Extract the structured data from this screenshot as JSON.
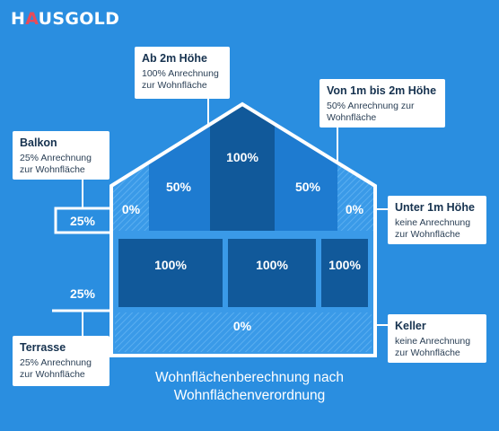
{
  "brand": {
    "logo_pre": "H",
    "logo_mark": "A",
    "logo_post": "USGOLD"
  },
  "colors": {
    "background": "#2a8ee0",
    "house_outline": "#ffffff",
    "full_area": "#11599a",
    "partial_area": "#1e7bd0",
    "excluded_area": "#3a9ae8",
    "accent": "#e84b5a"
  },
  "callouts": {
    "ab_2m": {
      "title": "Ab 2m Höhe",
      "desc": "100% Anrechnung zur Wohnfläche"
    },
    "von_1m_bis_2m": {
      "title": "Von 1m bis 2m Höhe",
      "desc": "50% Anrechnung zur Wohnfläche"
    },
    "balkon": {
      "title": "Balkon",
      "desc": "25% Anrechnung zur Wohnfläche"
    },
    "unter_1m": {
      "title": "Unter 1m Höhe",
      "desc": "keine Anrechnung zur Wohnfläche"
    },
    "terrasse": {
      "title": "Terrasse",
      "desc": "25% Anrechnung zur Wohnfläche"
    },
    "keller": {
      "title": "Keller",
      "desc": "keine Anrechnung zur Wohnfläche"
    }
  },
  "zones": {
    "attic_left_outer": "0%",
    "attic_left": "50%",
    "attic_center": "100%",
    "attic_right": "50%",
    "attic_right_outer": "0%",
    "floor_left": "100%",
    "floor_center": "100%",
    "floor_right": "100%",
    "basement": "0%",
    "balkon": "25%",
    "terrasse": "25%"
  },
  "caption": {
    "line1": "Wohnflächenberechnung nach",
    "line2": "Wohnflächenverordnung"
  }
}
